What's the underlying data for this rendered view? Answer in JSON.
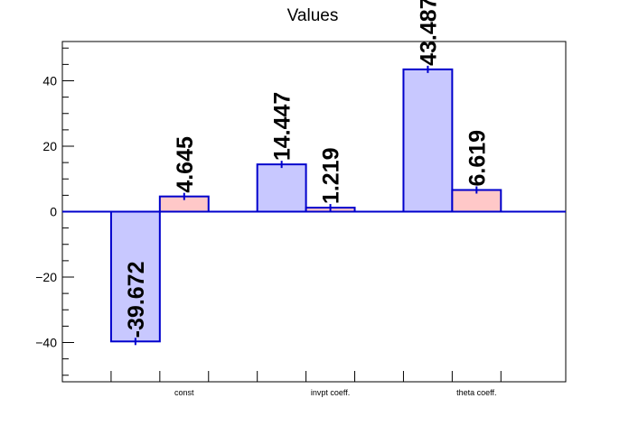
{
  "chart_data": {
    "type": "bar",
    "title": "Values",
    "categories": [
      "const",
      "invpt coeff.",
      "theta coeff."
    ],
    "ylim": [
      -52,
      52
    ],
    "yticks": [
      -40,
      -20,
      0,
      20,
      40
    ],
    "ytick_labels": [
      "−40",
      "−20",
      "0",
      "20",
      "40"
    ],
    "series": [
      {
        "values": [
          -39.672,
          14.447,
          43.487
        ],
        "labels": [
          "-39.672",
          "14.447",
          "43.487"
        ],
        "color": "#c8c8ff"
      },
      {
        "values": [
          4.645,
          1.219,
          6.619
        ],
        "labels": [
          "4.645",
          "1.219",
          "6.619"
        ],
        "color": "#ffc8c8"
      }
    ],
    "edge_color": "#0000cc",
    "grid": false,
    "legend": false
  }
}
